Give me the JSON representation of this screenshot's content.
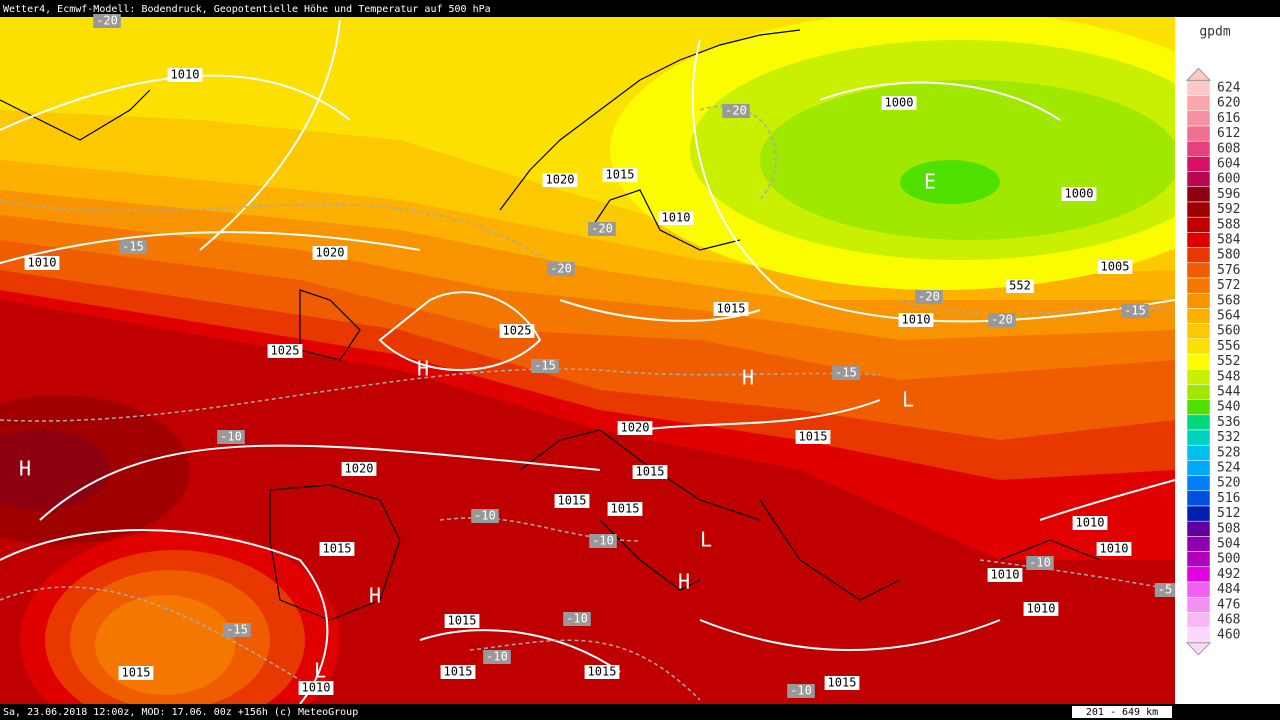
{
  "header": {
    "title": "Wetter4, Ecmwf-Modell: Bodendruck, Geopotentielle Höhe und Temperatur auf 500 hPa"
  },
  "footer": {
    "left": "Sa, 23.06.2018 12:00z, MOD: 17.06. 00z +156h (c) MeteoGroup",
    "scale": "201 - 649 km"
  },
  "legend": {
    "unit": "gpdm",
    "levels": [
      {
        "label": "624",
        "color": "#fcc8c8"
      },
      {
        "label": "620",
        "color": "#f8a8a8"
      },
      {
        "label": "616",
        "color": "#f490a0"
      },
      {
        "label": "612",
        "color": "#f07090"
      },
      {
        "label": "608",
        "color": "#e8407c"
      },
      {
        "label": "604",
        "color": "#d81068"
      },
      {
        "label": "600",
        "color": "#b80850"
      },
      {
        "label": "596",
        "color": "#8c0010"
      },
      {
        "label": "592",
        "color": "#a00000"
      },
      {
        "label": "588",
        "color": "#c00000"
      },
      {
        "label": "584",
        "color": "#e00000"
      },
      {
        "label": "580",
        "color": "#e83800"
      },
      {
        "label": "576",
        "color": "#f05c00"
      },
      {
        "label": "572",
        "color": "#f47800"
      },
      {
        "label": "568",
        "color": "#f89400"
      },
      {
        "label": "564",
        "color": "#fcb000"
      },
      {
        "label": "560",
        "color": "#fcc800"
      },
      {
        "label": "556",
        "color": "#fce000"
      },
      {
        "label": "552",
        "color": "#fcfc00"
      },
      {
        "label": "548",
        "color": "#c8f000"
      },
      {
        "label": "544",
        "color": "#a0e800"
      },
      {
        "label": "540",
        "color": "#50e000"
      },
      {
        "label": "536",
        "color": "#00d880"
      },
      {
        "label": "532",
        "color": "#00d0c0"
      },
      {
        "label": "528",
        "color": "#00c0f0"
      },
      {
        "label": "524",
        "color": "#00a8f8"
      },
      {
        "label": "520",
        "color": "#0080f8"
      },
      {
        "label": "516",
        "color": "#0050e0"
      },
      {
        "label": "512",
        "color": "#0020b0"
      },
      {
        "label": "508",
        "color": "#6000a0"
      },
      {
        "label": "504",
        "color": "#9000b0"
      },
      {
        "label": "500",
        "color": "#b000c0"
      },
      {
        "label": "492",
        "color": "#e000e0"
      },
      {
        "label": "484",
        "color": "#f060f0"
      },
      {
        "label": "476",
        "color": "#f490f4"
      },
      {
        "label": "468",
        "color": "#f8b8f8"
      },
      {
        "label": "460",
        "color": "#fcd8fc"
      }
    ]
  },
  "map": {
    "pressure_labels": [
      "1010",
      "1010",
      "1020",
      "1025",
      "1025",
      "1020",
      "1015",
      "1010",
      "1000",
      "1000",
      "1005",
      "552",
      "1010",
      "1015",
      "1020",
      "1015",
      "1015",
      "1020",
      "1015",
      "1015",
      "1015",
      "1010",
      "1010",
      "1010",
      "1010",
      "1015",
      "1015",
      "1015",
      "1015",
      "1010",
      "1015"
    ],
    "temperature_labels": [
      "-20",
      "-15",
      "-20",
      "-20",
      "-20",
      "-20",
      "-20",
      "-15",
      "-15",
      "-15",
      "-10",
      "-10",
      "-10",
      "-10",
      "-10",
      "-15",
      "-10",
      "-10",
      "-5"
    ],
    "centers": [
      "H",
      "H",
      "L",
      "H",
      "H",
      "L",
      "H",
      "L",
      "E"
    ]
  }
}
